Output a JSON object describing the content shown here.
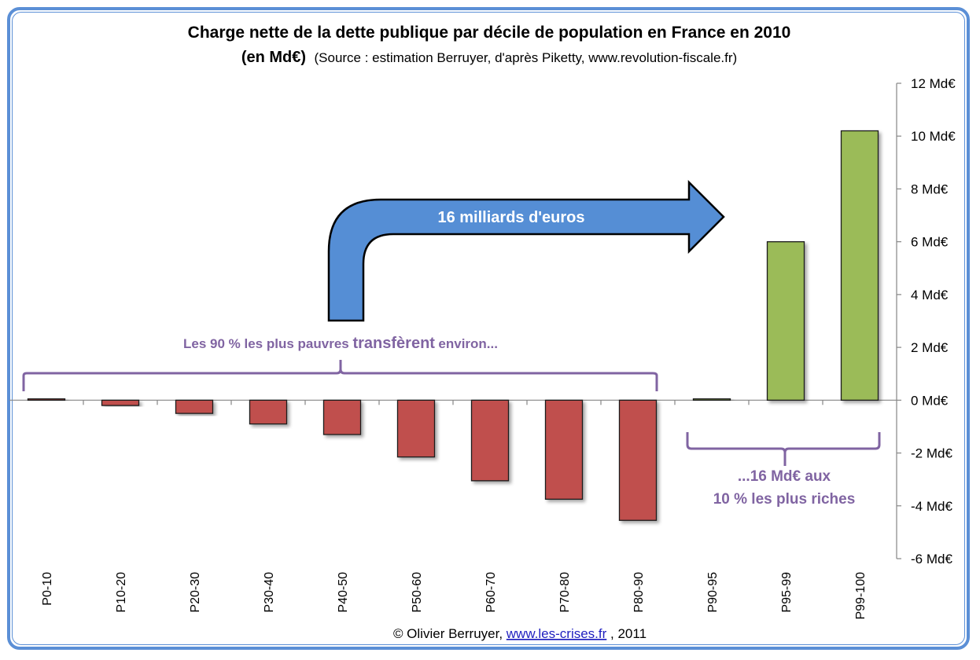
{
  "chart_data": {
    "type": "bar",
    "title": "Charge nette de la dette publique par décile de population en France en 2010",
    "subtitle_bold": "(en Md€)",
    "subtitle": "(Source : estimation Berruyer,  d'après Piketty, www.revolution-fiscale.fr)",
    "xlabel": "",
    "ylabel": "",
    "ylim": [
      -6,
      12
    ],
    "y_axis_position": "right",
    "y_ticks": [
      12,
      10,
      8,
      6,
      4,
      2,
      0,
      -2,
      -4,
      -6
    ],
    "y_tick_labels": [
      "12 Md€",
      "10 Md€",
      "8 Md€",
      "6 Md€",
      "4 Md€",
      "2 Md€",
      "0 Md€",
      "-2 Md€",
      "-4 Md€",
      "-6 Md€"
    ],
    "grid": false,
    "categories": [
      "P0-10",
      "P10-20",
      "P20-30",
      "P30-40",
      "P40-50",
      "P50-60",
      "P60-70",
      "P70-80",
      "P80-90",
      "P90-95",
      "P95-99",
      "P99-100"
    ],
    "values": [
      0.05,
      -0.2,
      -0.5,
      -0.9,
      -1.3,
      -2.15,
      -3.05,
      -3.75,
      -4.55,
      0.05,
      6.0,
      10.2
    ],
    "bar_colors": [
      "#c0504d",
      "#c0504d",
      "#c0504d",
      "#c0504d",
      "#c0504d",
      "#c0504d",
      "#c0504d",
      "#c0504d",
      "#c0504d",
      "#9bbb59",
      "#9bbb59",
      "#9bbb59"
    ],
    "annotations": {
      "left_brace_text": [
        "Les 90 % les plus pauvres ",
        "transfèrent",
        " environ..."
      ],
      "arrow_text": "16 milliards d'euros",
      "right_brace_text": [
        "...16 Md€ aux",
        "10 % les plus riches"
      ]
    },
    "credit": {
      "prefix": "© Olivier Berruyer, ",
      "link": "www.les-crises.fr",
      "suffix": ",  2011"
    }
  },
  "colors": {
    "negative": "#c0504d",
    "positive": "#9bbb59",
    "arrow": "#558ed5",
    "annotation": "#8064a2",
    "frame": "#5b8fd6"
  }
}
